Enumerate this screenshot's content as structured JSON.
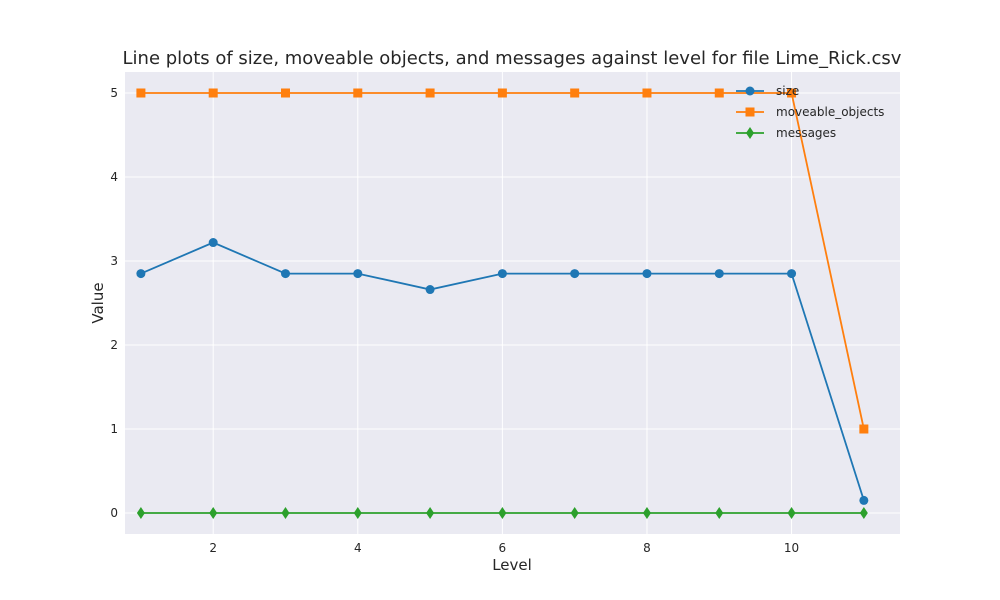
{
  "chart_data": {
    "type": "line",
    "title": "Line plots of size, moveable objects, and messages against level for file Lime_Rick.csv",
    "xlabel": "Level",
    "ylabel": "Value",
    "x": [
      1,
      2,
      3,
      4,
      5,
      6,
      7,
      8,
      9,
      10,
      11
    ],
    "xlim": [
      0.78,
      11.5
    ],
    "ylim": [
      -0.25,
      5.25
    ],
    "xticks": [
      2,
      4,
      6,
      8,
      10
    ],
    "yticks": [
      0,
      1,
      2,
      3,
      4,
      5
    ],
    "xtick_labels": [
      "2",
      "4",
      "6",
      "8",
      "10"
    ],
    "ytick_labels": [
      "0",
      "1",
      "2",
      "3",
      "4",
      "5"
    ],
    "grid": true,
    "legend_position": "top-right",
    "series": [
      {
        "name": "size",
        "color": "#1f77b4",
        "marker": "circle",
        "values": [
          2.85,
          3.22,
          2.85,
          2.85,
          2.66,
          2.85,
          2.85,
          2.85,
          2.85,
          2.85,
          0.15
        ]
      },
      {
        "name": "moveable_objects",
        "color": "#ff7f0e",
        "marker": "square",
        "values": [
          5,
          5,
          5,
          5,
          5,
          5,
          5,
          5,
          5,
          5,
          1
        ]
      },
      {
        "name": "messages",
        "color": "#2ca02c",
        "marker": "diamond",
        "values": [
          0,
          0,
          0,
          0,
          0,
          0,
          0,
          0,
          0,
          0,
          0
        ]
      }
    ]
  }
}
